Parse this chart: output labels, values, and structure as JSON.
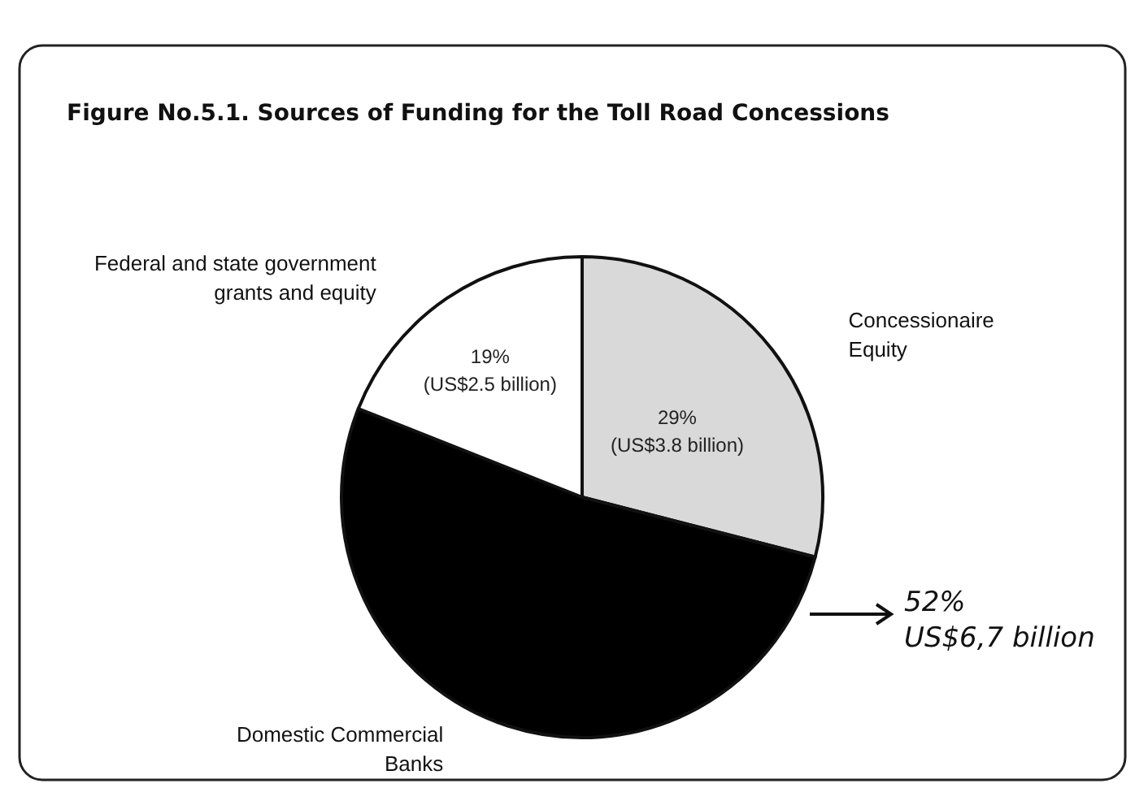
{
  "chart_data": {
    "type": "pie",
    "title": "Figure No.5.1. Sources of Funding for the Toll Road Concessions",
    "categories": [
      "Concessionaire\nEquity",
      "Domestic Commercial\nBanks",
      "Federal and state government\ngrants and equity"
    ],
    "values": [
      29,
      52,
      19
    ],
    "colors": [
      "#d9d9d9",
      "#000000",
      "#ffffff"
    ],
    "value_labels": [
      "29%\n(US$3.8 billion)",
      null,
      "19%\n(US$2.5 billion)"
    ],
    "annotations": [
      "52%\nUS$6,7 billion"
    ],
    "legend": false
  }
}
